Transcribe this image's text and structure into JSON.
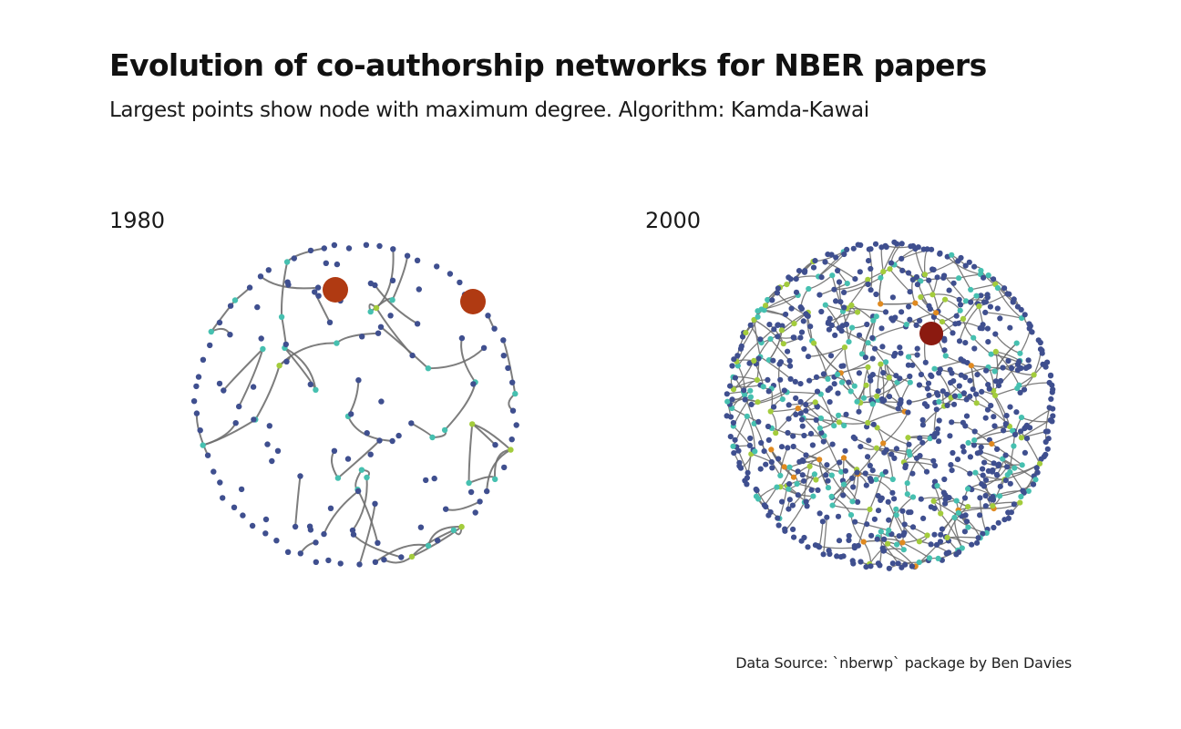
{
  "title": "Evolution of co-authorship networks for NBER papers",
  "subtitle": "Largest points show node with maximum degree. Algorithm: Kamda-Kawai",
  "caption": "Data Source: `nberwp` package by Ben Davies",
  "panels": [
    {
      "label": "1980"
    },
    {
      "label": "2000"
    }
  ],
  "colors": {
    "low_degree": "#3f4f8f",
    "mid_degree": "#46c0b0",
    "high_degree": "#a3cc3c",
    "higher_degree": "#e08a20",
    "max_degree": "#b03a12",
    "max_degree_2000": "#8b1a10",
    "edge": "#6f6f6f"
  }
}
